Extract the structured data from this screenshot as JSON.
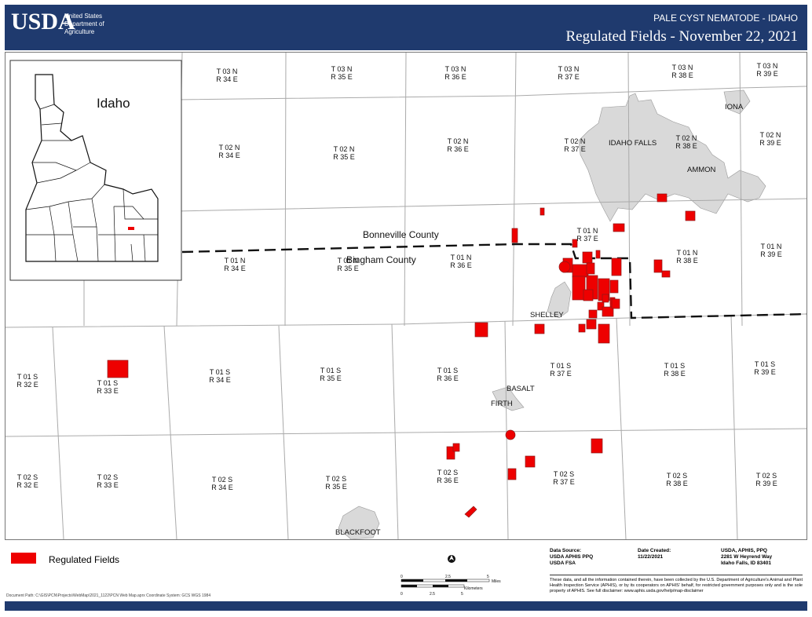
{
  "header": {
    "logo": "USDA",
    "agency_lines": [
      "United States",
      "Department of",
      "Agriculture"
    ],
    "program": "PALE CYST NEMATODE - IDAHO",
    "title": "Regulated Fields - November 22, 2021"
  },
  "inset": {
    "label": "Idaho"
  },
  "counties": {
    "north": "Bonneville County",
    "south": "Bingham County"
  },
  "townships": [
    {
      "t": "T 03 N",
      "r": "R 34 E"
    },
    {
      "t": "T 03 N",
      "r": "R 35 E"
    },
    {
      "t": "T 03 N",
      "r": "R 36 E"
    },
    {
      "t": "T 03 N",
      "r": "R 37 E"
    },
    {
      "t": "T 03 N",
      "r": "R 38 E"
    },
    {
      "t": "T 03 N",
      "r": "R 39 E"
    },
    {
      "t": "T 02 N",
      "r": "R 34 E"
    },
    {
      "t": "T 02 N",
      "r": "R 35 E"
    },
    {
      "t": "T 02 N",
      "r": "R 36 E"
    },
    {
      "t": "T 02 N",
      "r": "R 37 E"
    },
    {
      "t": "T 02 N",
      "r": "R 38 E"
    },
    {
      "t": "T 02 N",
      "r": "R 39 E"
    },
    {
      "t": "T 01 N",
      "r": "R 34 E"
    },
    {
      "t": "T 01 N",
      "r": "R 35 E"
    },
    {
      "t": "T 01 N",
      "r": "R 36 E"
    },
    {
      "t": "T 01 N",
      "r": "R 37 E"
    },
    {
      "t": "T 01 N",
      "r": "R 38 E"
    },
    {
      "t": "T 01 N",
      "r": "R 39 E"
    },
    {
      "t": "T 01 S",
      "r": "R 32 E"
    },
    {
      "t": "T 01 S",
      "r": "R 33 E"
    },
    {
      "t": "T 01 S",
      "r": "R 34 E"
    },
    {
      "t": "T 01 S",
      "r": "R 35 E"
    },
    {
      "t": "T 01 S",
      "r": "R 36 E"
    },
    {
      "t": "T 01 S",
      "r": "R 37 E"
    },
    {
      "t": "T 01 S",
      "r": "R 38 E"
    },
    {
      "t": "T 01 S",
      "r": "R 39 E"
    },
    {
      "t": "T 02 S",
      "r": "R 32 E"
    },
    {
      "t": "T 02 S",
      "r": "R 33 E"
    },
    {
      "t": "T 02 S",
      "r": "R 34 E"
    },
    {
      "t": "T 02 S",
      "r": "R 35 E"
    },
    {
      "t": "T 02 S",
      "r": "R 36 E"
    },
    {
      "t": "T 02 S",
      "r": "R 37 E"
    },
    {
      "t": "T 02 S",
      "r": "R 38 E"
    },
    {
      "t": "T 02 S",
      "r": "R 39 E"
    }
  ],
  "places": [
    "IDAHO FALLS",
    "IONA",
    "AMMON",
    "SHELLEY",
    "BASALT",
    "FIRTH",
    "BLACKFOOT"
  ],
  "legend": {
    "label": "Regulated Fields",
    "color": "#ee0000"
  },
  "scale_bar": {
    "miles_ticks": [
      "0",
      "2.5",
      "5"
    ],
    "miles_unit": "Miles",
    "km_ticks": [
      "0",
      "2.5",
      "5"
    ],
    "km_unit": "Kilometers"
  },
  "north_arrow": "north-arrow",
  "data_source": {
    "heading": "Data Source:",
    "lines": [
      "USDA APHIS PPQ",
      "USDA FSA"
    ]
  },
  "date_created": {
    "heading": "Date Created:",
    "value": "11/22/2021"
  },
  "contact": {
    "lines": [
      "USDA, APHIS, PPQ",
      "2281 W Heyrend Way",
      "Idaho Falls, ID 83401"
    ]
  },
  "disclaimer": "These data, and all the information contained therein, have been collected by the U.S. Department of Agriculture's Animal and Plant Health Inspection Service (APHIS), or by its cooperators on APHIS' behalf, for restricted government purposes only and is the sole property of APHIS. See full disclaimer: www.aphis.usda.gov/help/map-disclaimer",
  "document_path": "Document Path: C:\\GIS\\PCN\\Projects\\WebMap\\2021_1122\\PCN Web Map.aprx  Coordinate System: GCS WGS 1984",
  "colors": {
    "header_bg": "#1f3a6e",
    "urban": "#d9d9d9",
    "field": "#ee0000"
  }
}
